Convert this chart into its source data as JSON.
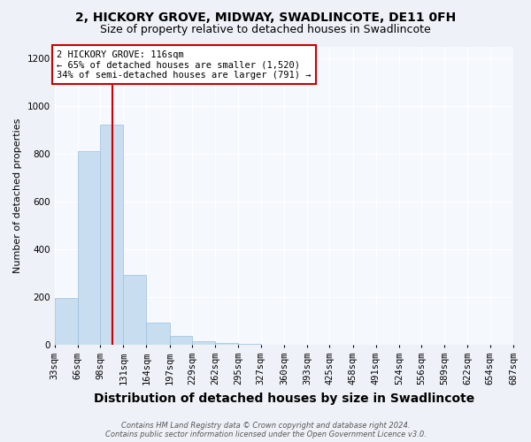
{
  "title": "2, HICKORY GROVE, MIDWAY, SWADLINCOTE, DE11 0FH",
  "subtitle": "Size of property relative to detached houses in Swadlincote",
  "xlabel": "Distribution of detached houses by size in Swadlincote",
  "ylabel": "Number of detached properties",
  "footnote1": "Contains HM Land Registry data © Crown copyright and database right 2024.",
  "footnote2": "Contains public sector information licensed under the Open Government Licence v3.0.",
  "bar_color": "#c8ddf0",
  "bar_edgecolor": "#9dbfdb",
  "vline_color": "#cc0000",
  "vline_x": 116,
  "annotation_text": "2 HICKORY GROVE: 116sqm\n← 65% of detached houses are smaller (1,520)\n34% of semi-detached houses are larger (791) →",
  "annotation_box_edgecolor": "#cc0000",
  "bin_edges": [
    33,
    66,
    98,
    131,
    164,
    197,
    229,
    262,
    295,
    327,
    360,
    393,
    425,
    458,
    491,
    524,
    556,
    589,
    622,
    654,
    687
  ],
  "bin_labels": [
    "33sqm",
    "66sqm",
    "98sqm",
    "131sqm",
    "164sqm",
    "197sqm",
    "229sqm",
    "262sqm",
    "295sqm",
    "327sqm",
    "360sqm",
    "393sqm",
    "425sqm",
    "458sqm",
    "491sqm",
    "524sqm",
    "556sqm",
    "589sqm",
    "622sqm",
    "654sqm",
    "687sqm"
  ],
  "bar_heights": [
    196,
    812,
    924,
    292,
    92,
    38,
    14,
    8,
    2,
    0,
    0,
    0,
    0,
    0,
    0,
    0,
    0,
    0,
    0,
    0
  ],
  "ylim": [
    0,
    1250
  ],
  "yticks": [
    0,
    200,
    400,
    600,
    800,
    1000,
    1200
  ],
  "background_color": "#eef2f8",
  "plot_background_color": "#f5f8fd",
  "grid_color": "#ffffff",
  "title_fontsize": 10,
  "subtitle_fontsize": 9,
  "xlabel_fontsize": 10,
  "ylabel_fontsize": 8,
  "tick_fontsize": 7.5,
  "footnote_fontsize": 6,
  "annotation_fontsize": 7.5
}
